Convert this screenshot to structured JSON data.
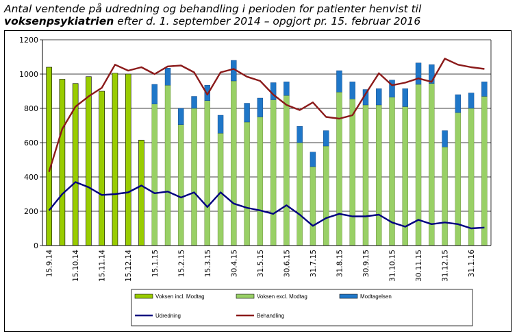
{
  "title": {
    "line1": "Antal ventende på udredning og behandling i perioden for patienter henvist til",
    "line2_bold": "voksenpsykiatrien",
    "line2_rest": " efter d. 1. september 2014 – opgjort pr. 15. februar 2016"
  },
  "chart_data": {
    "type": "bar",
    "title": "Antal ventende på udredning og behandling i perioden for patienter henvist til voksenpsykiatrien efter d. 1. september 2014 – opgjort pr. 15. februar 2016",
    "ylim": [
      0,
      1200
    ],
    "yticks": [
      0,
      200,
      400,
      600,
      800,
      1000,
      1200
    ],
    "grid": true,
    "legend_position": "bottom",
    "x_tick_labels": [
      {
        "i": 0,
        "label": "15.9.14"
      },
      {
        "i": 2,
        "label": "15.10.14"
      },
      {
        "i": 4,
        "label": "15.11.14"
      },
      {
        "i": 6,
        "label": "15.12.14"
      },
      {
        "i": 8,
        "label": "15.1.15"
      },
      {
        "i": 10,
        "label": "15.2.15"
      },
      {
        "i": 12,
        "label": "15.3.15"
      },
      {
        "i": 14,
        "label": "30.4.15"
      },
      {
        "i": 16,
        "label": "31.5.15"
      },
      {
        "i": 18,
        "label": "30.6.15"
      },
      {
        "i": 20,
        "label": "31.7.15"
      },
      {
        "i": 22,
        "label": "31.8.15"
      },
      {
        "i": 24,
        "label": "30.9.15"
      },
      {
        "i": 26,
        "label": "31.10.15"
      },
      {
        "i": 28,
        "label": "30.11.15"
      },
      {
        "i": 30,
        "label": "31.12.15"
      },
      {
        "i": 32,
        "label": "31.1.16"
      }
    ],
    "series": [
      {
        "name": "Voksen incl. Modtag",
        "kind": "bar",
        "color": "#99cc00",
        "values": [
          1040,
          970,
          945,
          985,
          900,
          1005,
          1000,
          615,
          null,
          null,
          null,
          null,
          null,
          null,
          null,
          null,
          null,
          null,
          null,
          null,
          null,
          null,
          null,
          null,
          null,
          null,
          null,
          null,
          null,
          null,
          null,
          null,
          null,
          null
        ]
      },
      {
        "name": "Voksen excl. Modtag",
        "kind": "bar",
        "color": "#99d066",
        "values": [
          null,
          null,
          null,
          null,
          null,
          null,
          null,
          null,
          825,
          935,
          705,
          800,
          845,
          655,
          960,
          720,
          750,
          850,
          875,
          600,
          460,
          580,
          895,
          855,
          820,
          820,
          865,
          810,
          940,
          945,
          575,
          775,
          800,
          870
        ]
      },
      {
        "name": "Modtagelsen",
        "kind": "bar",
        "color": "#1f77c8",
        "values": [
          null,
          null,
          null,
          null,
          null,
          null,
          null,
          null,
          115,
          100,
          95,
          70,
          90,
          105,
          120,
          110,
          110,
          100,
          80,
          95,
          85,
          90,
          125,
          100,
          90,
          95,
          100,
          105,
          125,
          110,
          95,
          105,
          90,
          85
        ]
      },
      {
        "name": "Udredning",
        "kind": "line",
        "color": "#000080",
        "values": [
          205,
          300,
          370,
          340,
          295,
          300,
          310,
          350,
          305,
          315,
          280,
          310,
          225,
          310,
          245,
          220,
          205,
          185,
          235,
          180,
          115,
          160,
          185,
          170,
          170,
          180,
          135,
          110,
          150,
          125,
          135,
          125,
          100,
          105
        ]
      },
      {
        "name": "Behandling",
        "kind": "line",
        "color": "#8b1a1a",
        "values": [
          430,
          680,
          810,
          870,
          920,
          1055,
          1020,
          1040,
          1000,
          1045,
          1050,
          1010,
          880,
          1010,
          1030,
          985,
          960,
          880,
          820,
          790,
          835,
          750,
          740,
          760,
          885,
          1005,
          935,
          950,
          975,
          955,
          1090,
          1055,
          1040,
          1030
        ]
      }
    ]
  }
}
